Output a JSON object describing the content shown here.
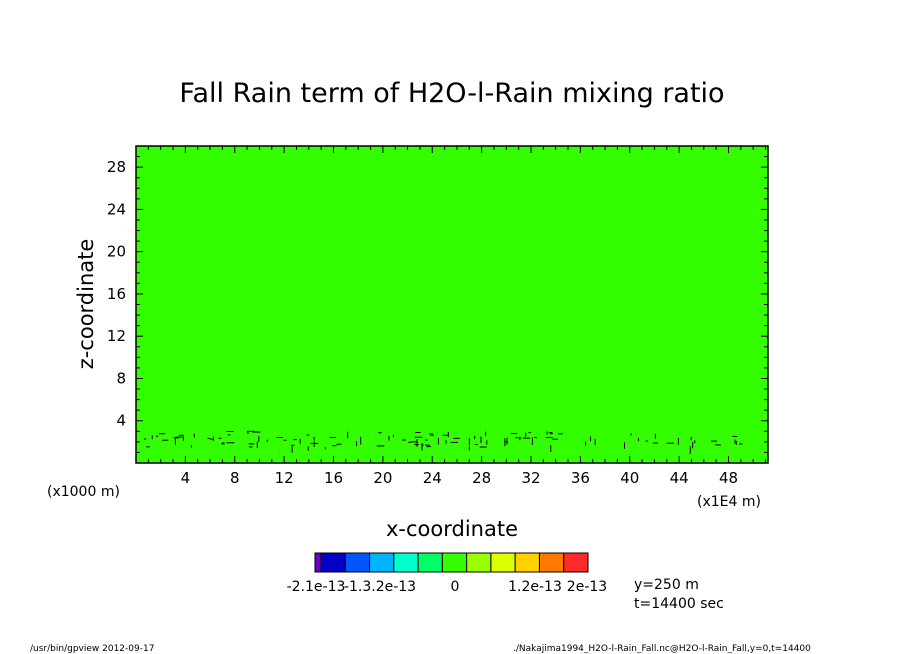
{
  "chart_data": {
    "type": "heatmap",
    "title": "Fall Rain term of H2O-l-Rain mixing ratio",
    "xlabel": "x-coordinate",
    "ylabel": "z-coordinate",
    "x_unit_left": "(x1000 m)",
    "x_unit_right": "(x1E4 m)",
    "xlim": [
      0,
      51.2
    ],
    "ylim": [
      0,
      30
    ],
    "x_ticks": [
      4,
      8,
      12,
      16,
      20,
      24,
      28,
      32,
      36,
      40,
      44,
      48
    ],
    "y_ticks": [
      4,
      8,
      12,
      16,
      20,
      24,
      28
    ],
    "field_color": "#33ff00",
    "field_value": 0,
    "noise_band_z": [
      1.5,
      3.0
    ],
    "colorbar": {
      "colors": [
        "#6a00c8",
        "#0000c8",
        "#0055ff",
        "#00b4ff",
        "#00ffcc",
        "#00ff66",
        "#33ff00",
        "#99ff00",
        "#ddff00",
        "#ffd200",
        "#ff7800",
        "#ff2a2a"
      ],
      "labels": [
        "-2.1e-13",
        "-1.3.2e-13",
        "0",
        "1.2e-13",
        "2e-13"
      ]
    },
    "info": [
      "y=250  m",
      "t=14400 sec"
    ]
  },
  "footer": {
    "left": "/usr/bin/gpview   2012-09-17",
    "right": "./Nakajima1994_H2O-l-Rain_Fall.nc@H2O-l-Rain_Fall,y=0,t=14400"
  }
}
